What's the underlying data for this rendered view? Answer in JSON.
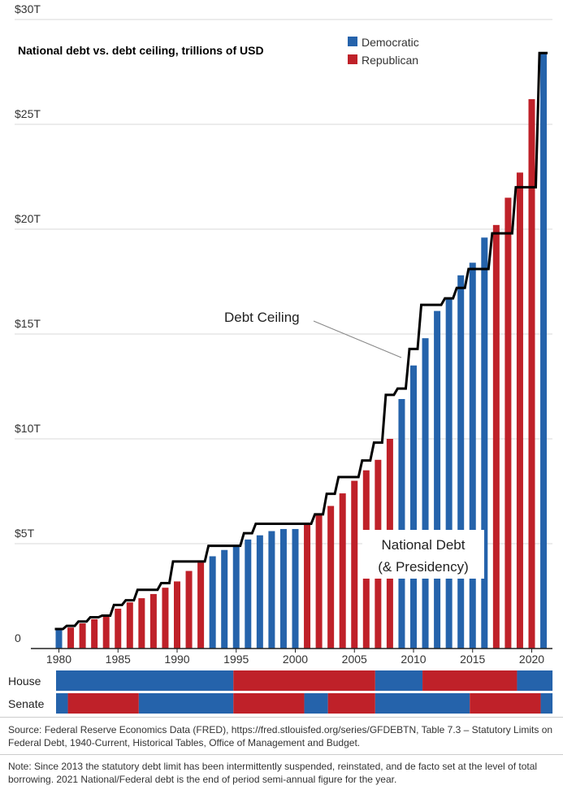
{
  "chart_data": {
    "type": "bar",
    "title": "National debt vs. debt ceiling, trillions of USD",
    "ylim": [
      0,
      30
    ],
    "yticks": [
      {
        "v": 0,
        "label": "0"
      },
      {
        "v": 5,
        "label": "$5T"
      },
      {
        "v": 10,
        "label": "$10T"
      },
      {
        "v": 15,
        "label": "$15T"
      },
      {
        "v": 20,
        "label": "$20T"
      },
      {
        "v": 25,
        "label": "$25T"
      },
      {
        "v": 30,
        "label": "$30T"
      }
    ],
    "xticks": [
      1980,
      1985,
      1990,
      1995,
      2000,
      2005,
      2010,
      2015,
      2020
    ],
    "grid": true,
    "legend": {
      "position": "top-right",
      "items": [
        {
          "name": "Democratic",
          "color": "#2563ab"
        },
        {
          "name": "Republican",
          "color": "#bf2129"
        }
      ]
    },
    "colors": {
      "D": "#2563ab",
      "R": "#bf2129",
      "ceiling": "#000000"
    },
    "years": [
      1980,
      1981,
      1982,
      1983,
      1984,
      1985,
      1986,
      1987,
      1988,
      1989,
      1990,
      1991,
      1992,
      1993,
      1994,
      1995,
      1996,
      1997,
      1998,
      1999,
      2000,
      2001,
      2002,
      2003,
      2004,
      2005,
      2006,
      2007,
      2008,
      2009,
      2010,
      2011,
      2012,
      2013,
      2014,
      2015,
      2016,
      2017,
      2018,
      2019,
      2020,
      2021
    ],
    "series": [
      {
        "name": "National Debt",
        "values": [
          0.93,
          1.0,
          1.2,
          1.4,
          1.6,
          1.9,
          2.2,
          2.4,
          2.6,
          2.9,
          3.2,
          3.7,
          4.1,
          4.4,
          4.7,
          4.9,
          5.2,
          5.4,
          5.6,
          5.7,
          5.7,
          5.9,
          6.4,
          6.8,
          7.4,
          8.0,
          8.5,
          9.0,
          10.0,
          11.9,
          13.5,
          14.8,
          16.1,
          16.7,
          17.8,
          18.4,
          19.6,
          20.2,
          21.5,
          22.7,
          26.2,
          28.4
        ]
      },
      {
        "name": "Debt Ceiling",
        "values": [
          0.93,
          1.08,
          1.29,
          1.49,
          1.57,
          2.08,
          2.3,
          2.8,
          2.8,
          3.12,
          4.15,
          4.15,
          4.15,
          4.9,
          4.9,
          4.9,
          5.5,
          5.95,
          5.95,
          5.95,
          5.95,
          5.95,
          6.4,
          7.38,
          8.18,
          8.18,
          8.97,
          9.82,
          12.1,
          12.4,
          14.29,
          16.39,
          16.39,
          16.7,
          17.2,
          18.1,
          18.1,
          19.8,
          19.8,
          22.0,
          22.0,
          28.4
        ]
      }
    ],
    "presidency": [
      "D",
      "R",
      "R",
      "R",
      "R",
      "R",
      "R",
      "R",
      "R",
      "R",
      "R",
      "R",
      "R",
      "D",
      "D",
      "D",
      "D",
      "D",
      "D",
      "D",
      "D",
      "R",
      "R",
      "R",
      "R",
      "R",
      "R",
      "R",
      "R",
      "D",
      "D",
      "D",
      "D",
      "D",
      "D",
      "D",
      "D",
      "R",
      "R",
      "R",
      "R",
      "D"
    ],
    "annotations": {
      "ceiling": "Debt Ceiling",
      "debt_line1": "National Debt",
      "debt_line2": "(& Presidency)"
    }
  },
  "congress": {
    "house_label": "House",
    "senate_label": "Senate",
    "house": [
      {
        "from": 1980,
        "to": 1994,
        "party": "D"
      },
      {
        "from": 1995,
        "to": 2006,
        "party": "R"
      },
      {
        "from": 2007,
        "to": 2010,
        "party": "D"
      },
      {
        "from": 2011,
        "to": 2018,
        "party": "R"
      },
      {
        "from": 2019,
        "to": 2021,
        "party": "D"
      }
    ],
    "senate": [
      {
        "from": 1980,
        "to": 1980,
        "party": "D"
      },
      {
        "from": 1981,
        "to": 1986,
        "party": "R"
      },
      {
        "from": 1987,
        "to": 1994,
        "party": "D"
      },
      {
        "from": 1995,
        "to": 2000,
        "party": "R"
      },
      {
        "from": 2001,
        "to": 2002,
        "party": "D"
      },
      {
        "from": 2003,
        "to": 2006,
        "party": "R"
      },
      {
        "from": 2007,
        "to": 2014,
        "party": "D"
      },
      {
        "from": 2015,
        "to": 2020,
        "party": "R"
      },
      {
        "from": 2021,
        "to": 2021,
        "party": "D"
      }
    ]
  },
  "footer": {
    "source": "Source: Federal Reserve Economics Data (FRED), https://fred.stlouisfed.org/series/GFDEBTN, Table 7.3 – Statutory Limits on Federal Debt, 1940-Current, Historical Tables, Office of Management and Budget.",
    "note": "Note: Since 2013 the statutory debt limit has been intermittently suspended, reinstated, and de facto set at the level of total borrowing. 2021 National/Federal debt is the end of period semi-annual figure for the year."
  }
}
